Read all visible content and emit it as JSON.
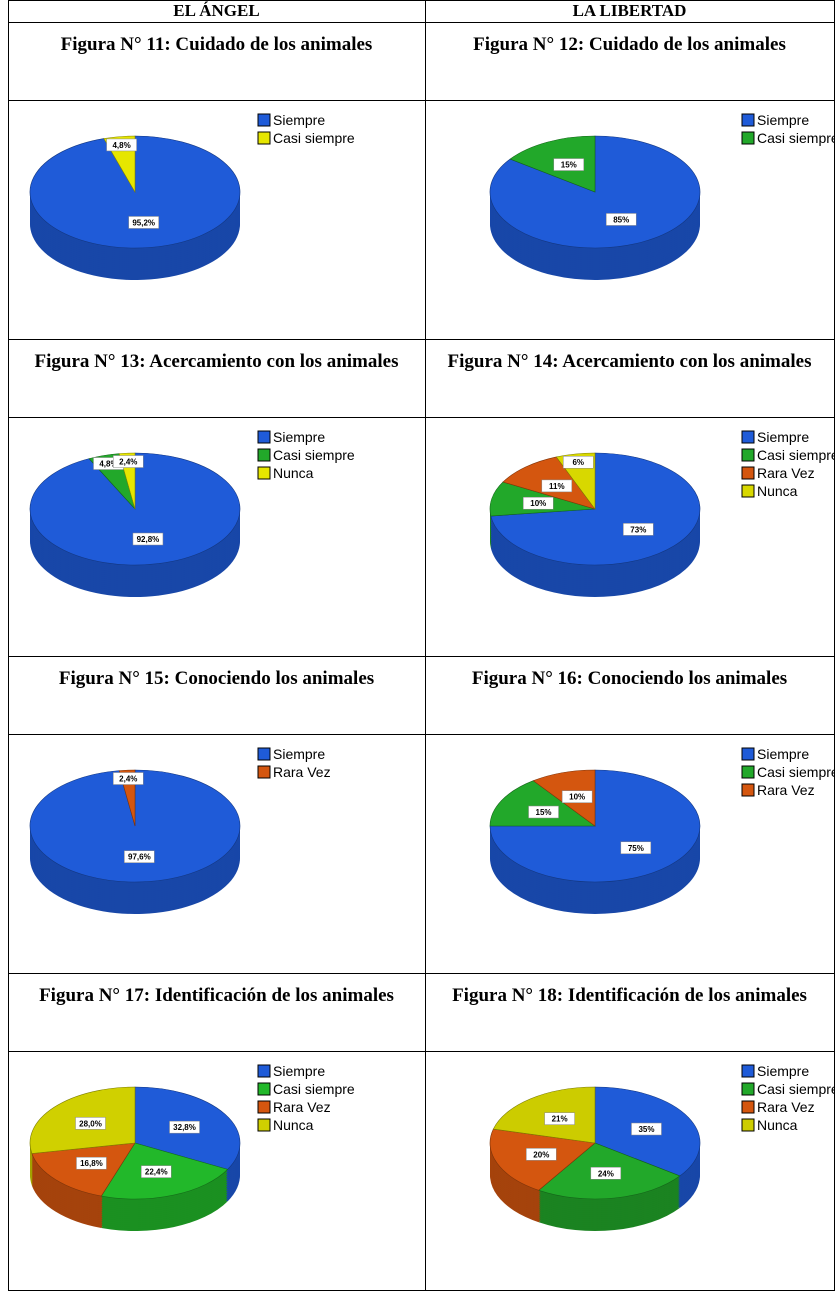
{
  "table": {
    "columns": [
      "EL ÁNGEL",
      "LA LIBERTAD"
    ],
    "figures": [
      {
        "title": "Figura N° 11: Cuidado de los animales",
        "chart": {
          "type": "pie",
          "categories": [
            "Siempre",
            "Casi siempre"
          ],
          "values": [
            95.2,
            4.8
          ],
          "value_labels": [
            "95,2%",
            "4,8%"
          ],
          "colors": [
            "#1f5bd8",
            "#e6e600"
          ]
        }
      },
      {
        "title": "Figura N° 12: Cuidado de los animales",
        "chart": {
          "type": "pie",
          "categories": [
            "Siempre",
            "Casi siempre"
          ],
          "values": [
            85,
            15
          ],
          "value_labels": [
            "85%",
            "15%"
          ],
          "colors": [
            "#1f5bd8",
            "#22a82a"
          ]
        }
      },
      {
        "title": "Figura N° 13: Acercamiento con los animales",
        "chart": {
          "type": "pie",
          "categories": [
            "Siempre",
            "Casi siempre",
            "Nunca"
          ],
          "values": [
            92.8,
            4.8,
            2.4
          ],
          "value_labels": [
            "92,8%",
            "4,8%",
            "2,4%"
          ],
          "colors": [
            "#1f5bd8",
            "#22a82a",
            "#e6e600"
          ]
        }
      },
      {
        "title": "Figura N° 14: Acercamiento con los animales",
        "chart": {
          "type": "pie",
          "categories": [
            "Siempre",
            "Casi siempre",
            "Rara Vez",
            "Nunca"
          ],
          "values": [
            73,
            10,
            11,
            6
          ],
          "value_labels": [
            "73%",
            "10%",
            "11%",
            "6%"
          ],
          "colors": [
            "#1f5bd8",
            "#22a82a",
            "#d4560f",
            "#d8d800"
          ]
        }
      },
      {
        "title": "Figura N° 15: Conociendo los animales",
        "chart": {
          "type": "pie",
          "categories": [
            "Siempre",
            "Rara Vez"
          ],
          "values": [
            97.6,
            2.4
          ],
          "value_labels": [
            "97,6%",
            "2,4%"
          ],
          "colors": [
            "#1f5bd8",
            "#d4560f"
          ]
        }
      },
      {
        "title": "Figura N° 16: Conociendo los animales",
        "chart": {
          "type": "pie",
          "categories": [
            "Siempre",
            "Casi siempre",
            "Rara Vez"
          ],
          "values": [
            75,
            15,
            10
          ],
          "value_labels": [
            "75%",
            "15%",
            "10%"
          ],
          "colors": [
            "#1f5bd8",
            "#22a82a",
            "#d4560f"
          ]
        }
      },
      {
        "title": "Figura N° 17: Identificación de los animales",
        "chart": {
          "type": "pie",
          "categories": [
            "Siempre",
            "Casi siempre",
            "Rara Vez",
            "Nunca"
          ],
          "values": [
            32.8,
            22.4,
            16.8,
            28.0
          ],
          "value_labels": [
            "32,8%",
            "22,4%",
            "16,8%",
            "28,0%"
          ],
          "colors": [
            "#1f5bd8",
            "#22b82a",
            "#d4560f",
            "#d0d000"
          ]
        }
      },
      {
        "title": "Figura N° 18: Identificación de los animales",
        "chart": {
          "type": "pie",
          "categories": [
            "Siempre",
            "Casi siempre",
            "Rara Vez",
            "Nunca"
          ],
          "values": [
            35,
            24,
            20,
            21
          ],
          "value_labels": [
            "35%",
            "24%",
            "20%",
            "21%"
          ],
          "colors": [
            "#1f5bd8",
            "#22a82a",
            "#d4560f",
            "#cccc00"
          ]
        }
      }
    ]
  }
}
